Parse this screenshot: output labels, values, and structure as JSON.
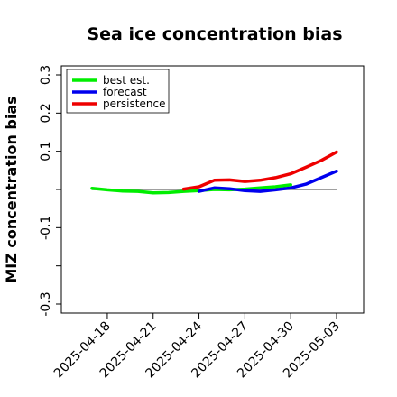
{
  "chart_data": {
    "type": "line",
    "title": "Sea ice concentration bias",
    "ylabel": "MIZ concentration bias",
    "xlabel": "",
    "ylim": [
      -0.32,
      0.33
    ],
    "y_ticks": [
      {
        "value": -0.3,
        "label": "-0.3"
      },
      {
        "value": -0.2,
        "label": ""
      },
      {
        "value": -0.1,
        "label": "-0.1"
      },
      {
        "value": 0.0,
        "label": ""
      },
      {
        "value": 0.1,
        "label": "0.1"
      },
      {
        "value": 0.2,
        "label": "0.2"
      },
      {
        "value": 0.3,
        "label": "0.3"
      }
    ],
    "x_start": "2025-04-16",
    "x_end": "2025-05-05",
    "x_ticks": [
      {
        "value": "2025-04-18",
        "label": "2025-04-18",
        "color": "#000000"
      },
      {
        "value": "2025-04-21",
        "label": "2025-04-21",
        "color": "#000000"
      },
      {
        "value": "2025-04-24",
        "label": "2025-04-24",
        "color": "#228B22"
      },
      {
        "value": "2025-04-27",
        "label": "2025-04-27",
        "color": "#000000"
      },
      {
        "value": "2025-04-30",
        "label": "2025-04-30",
        "color": "#000000"
      },
      {
        "value": "2025-05-03",
        "label": "2025-05-03",
        "color": "#000000"
      }
    ],
    "zero_line": 0,
    "grid": false,
    "legend_position": "top-left",
    "series": [
      {
        "name": "best est.",
        "color": "#00ee00",
        "points": [
          {
            "x": "2025-04-17",
            "y": 0.003
          },
          {
            "x": "2025-04-18",
            "y": -0.001
          },
          {
            "x": "2025-04-19",
            "y": -0.004
          },
          {
            "x": "2025-04-20",
            "y": -0.005
          },
          {
            "x": "2025-04-21",
            "y": -0.009
          },
          {
            "x": "2025-04-22",
            "y": -0.008
          },
          {
            "x": "2025-04-23",
            "y": -0.005
          },
          {
            "x": "2025-04-24",
            "y": -0.003
          },
          {
            "x": "2025-04-25",
            "y": 0.0
          },
          {
            "x": "2025-04-26",
            "y": -0.001
          },
          {
            "x": "2025-04-27",
            "y": 0.001
          },
          {
            "x": "2025-04-28",
            "y": 0.004
          },
          {
            "x": "2025-04-29",
            "y": 0.007
          },
          {
            "x": "2025-04-30",
            "y": 0.012
          }
        ]
      },
      {
        "name": "forecast",
        "color": "#0000ee",
        "points": [
          {
            "x": "2025-04-24",
            "y": -0.005
          },
          {
            "x": "2025-04-25",
            "y": 0.004
          },
          {
            "x": "2025-04-26",
            "y": 0.002
          },
          {
            "x": "2025-04-27",
            "y": -0.003
          },
          {
            "x": "2025-04-28",
            "y": -0.005
          },
          {
            "x": "2025-04-29",
            "y": -0.001
          },
          {
            "x": "2025-04-30",
            "y": 0.004
          },
          {
            "x": "2025-05-01",
            "y": 0.014
          },
          {
            "x": "2025-05-02",
            "y": 0.031
          },
          {
            "x": "2025-05-03",
            "y": 0.048
          }
        ]
      },
      {
        "name": "persistence",
        "color": "#ee0000",
        "points": [
          {
            "x": "2025-04-23",
            "y": 0.001
          },
          {
            "x": "2025-04-24",
            "y": 0.007
          },
          {
            "x": "2025-04-25",
            "y": 0.024
          },
          {
            "x": "2025-04-26",
            "y": 0.025
          },
          {
            "x": "2025-04-27",
            "y": 0.021
          },
          {
            "x": "2025-04-28",
            "y": 0.024
          },
          {
            "x": "2025-04-29",
            "y": 0.031
          },
          {
            "x": "2025-04-30",
            "y": 0.041
          },
          {
            "x": "2025-05-01",
            "y": 0.058
          },
          {
            "x": "2025-05-02",
            "y": 0.076
          },
          {
            "x": "2025-05-03",
            "y": 0.098
          }
        ]
      }
    ]
  }
}
